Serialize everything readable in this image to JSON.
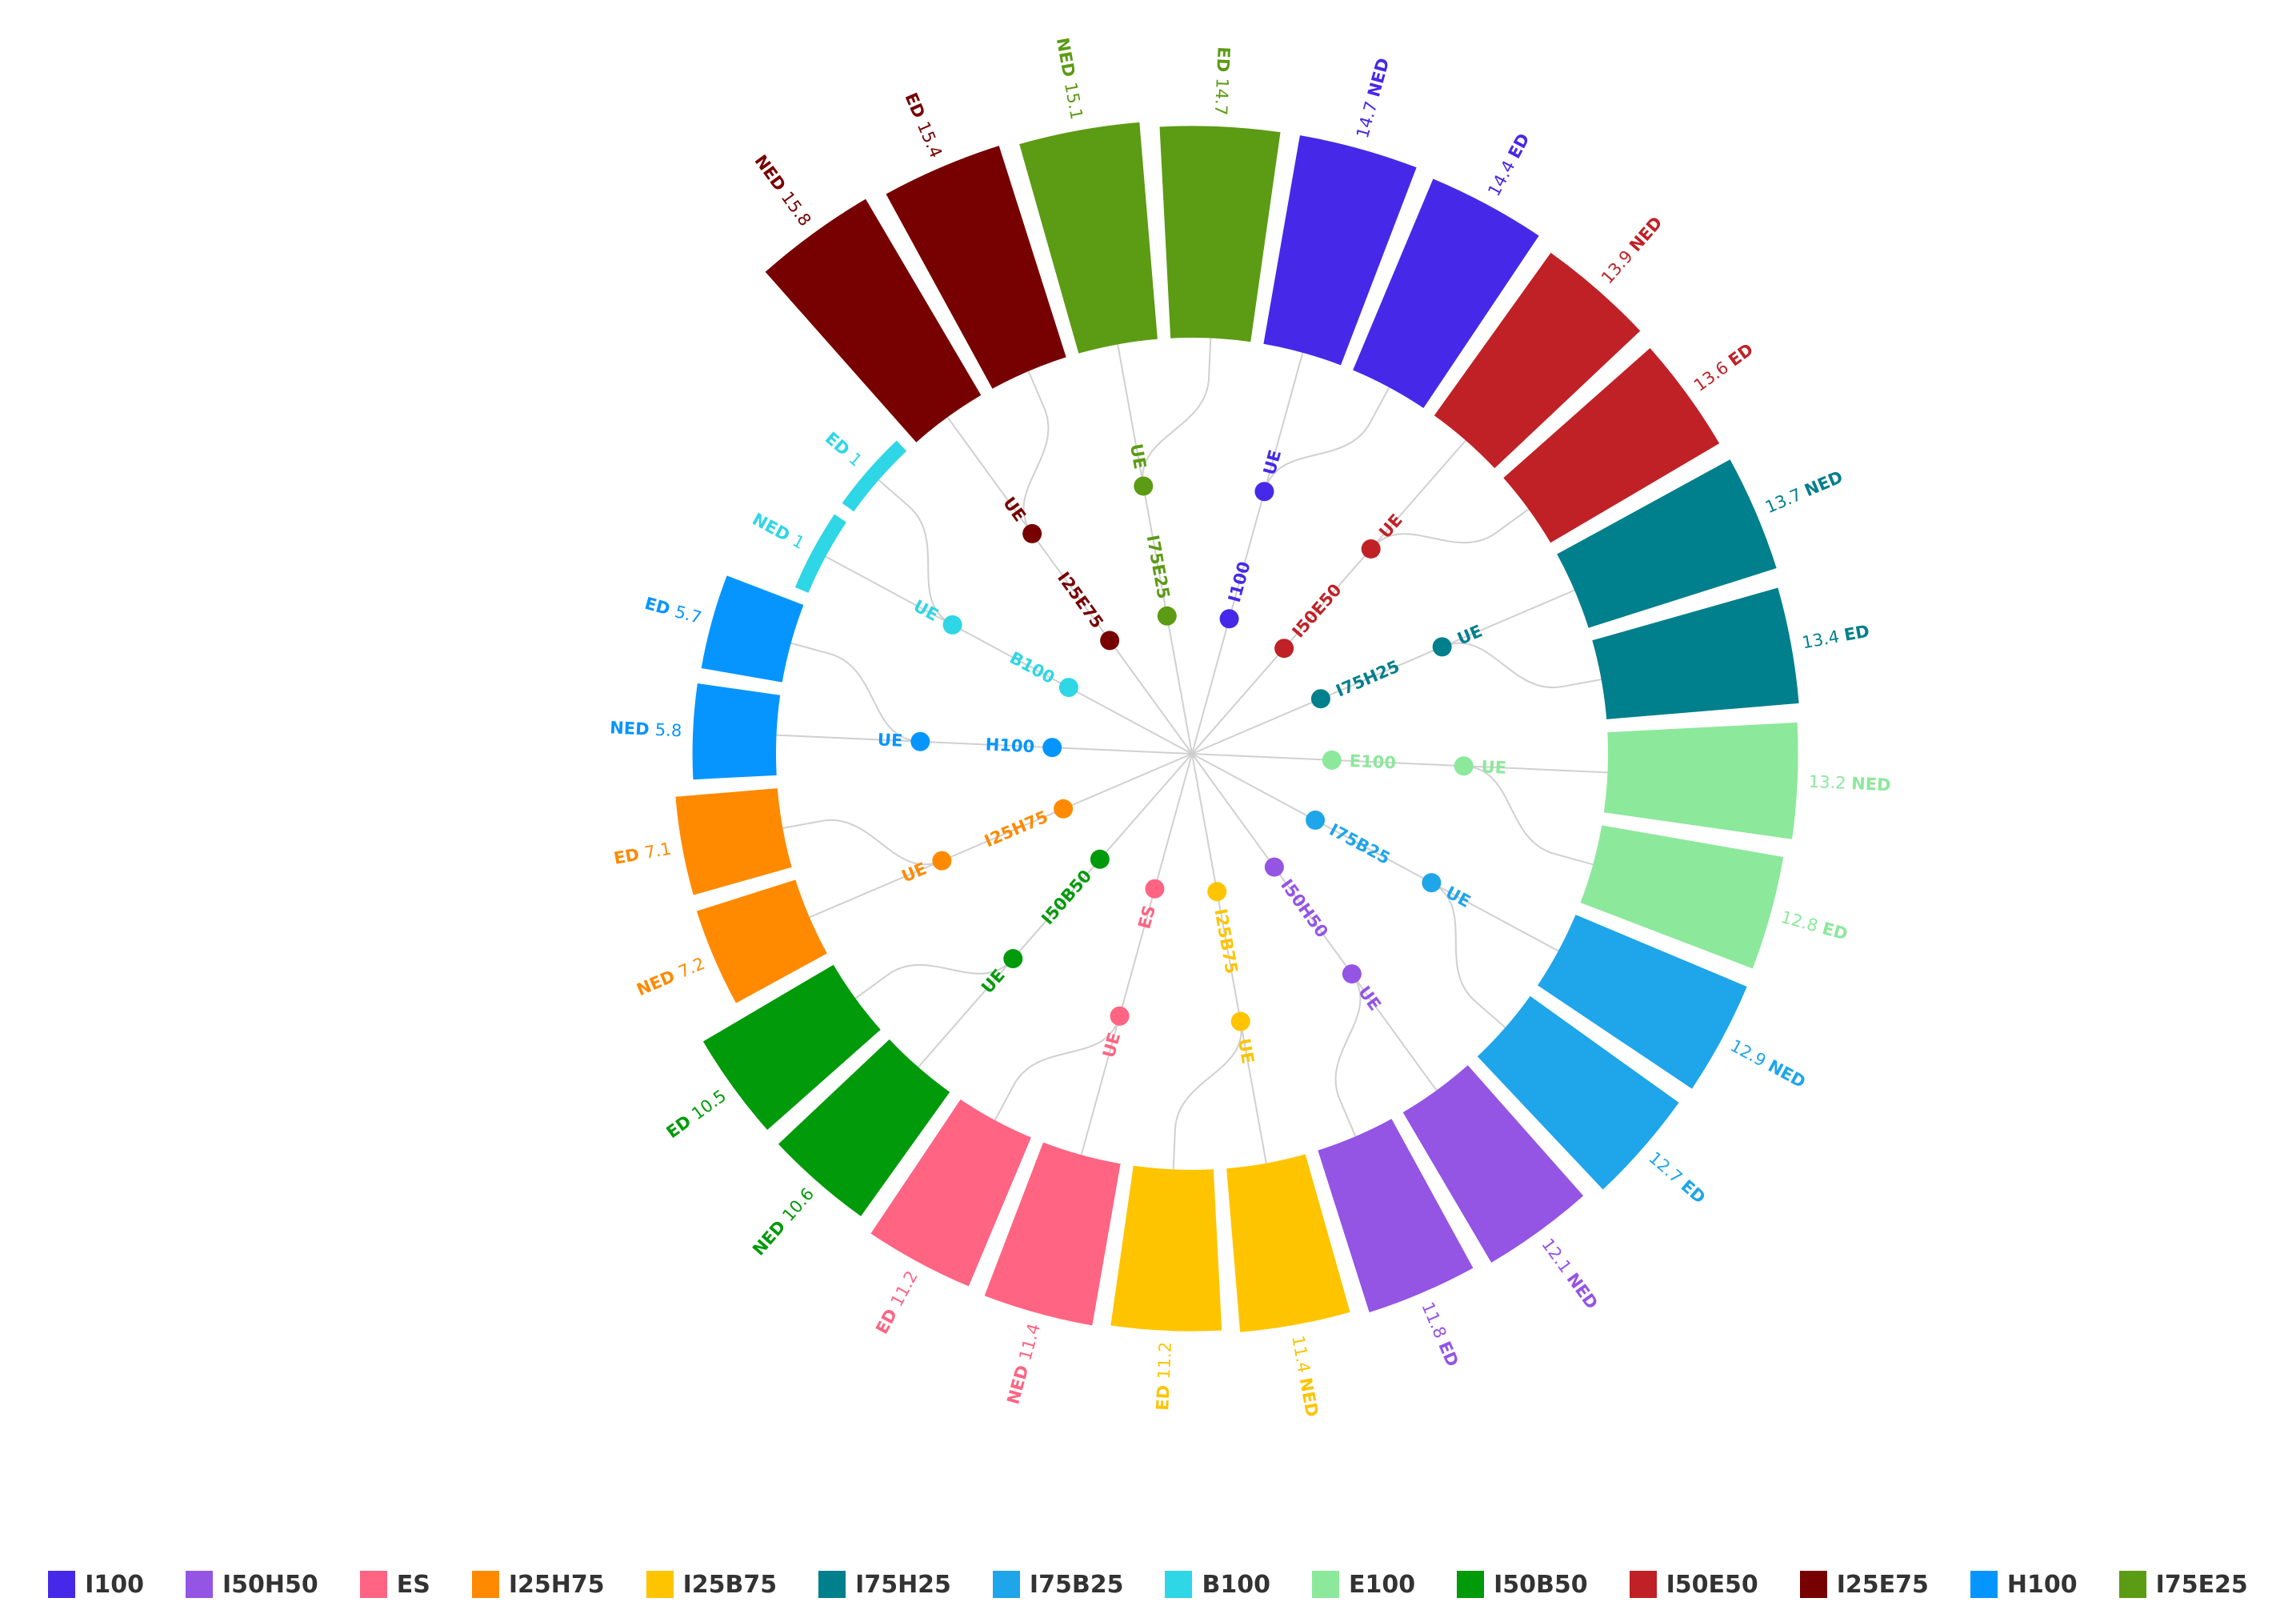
{
  "chart_data": {
    "type": "radial-bar-tree",
    "categories_order": [
      "I100",
      "I50E50",
      "I75H25",
      "E100",
      "I75B25",
      "I50H50",
      "I25B75",
      "ES",
      "I50B50",
      "I25H75",
      "H100",
      "B100",
      "I25E75",
      "I75E25"
    ],
    "series": [
      {
        "name": "I100",
        "color": "#4629e8",
        "branch": "UE",
        "groups": [
          {
            "label": "NED",
            "value": 14.7
          },
          {
            "label": "ED",
            "value": 14.4
          }
        ]
      },
      {
        "name": "I50E50",
        "color": "#c02126",
        "branch": "UE",
        "groups": [
          {
            "label": "NED",
            "value": 13.9
          },
          {
            "label": "ED",
            "value": 13.6
          }
        ]
      },
      {
        "name": "I75H25",
        "color": "#007f8c",
        "branch": "UE",
        "groups": [
          {
            "label": "NED",
            "value": 13.7
          },
          {
            "label": "ED",
            "value": 13.4
          }
        ]
      },
      {
        "name": "E100",
        "color": "#8ce89b",
        "branch": "UE",
        "groups": [
          {
            "label": "NED",
            "value": 13.2
          },
          {
            "label": "ED",
            "value": 12.8
          }
        ]
      },
      {
        "name": "I75B25",
        "color": "#1ea5ea",
        "branch": "UE",
        "groups": [
          {
            "label": "NED",
            "value": 12.9
          },
          {
            "label": "ED",
            "value": 12.7
          }
        ]
      },
      {
        "name": "I50H50",
        "color": "#9454e4",
        "branch": "UE",
        "groups": [
          {
            "label": "NED",
            "value": 12.1
          },
          {
            "label": "ED",
            "value": 11.8
          }
        ]
      },
      {
        "name": "I25B75",
        "color": "#ffc400",
        "branch": "UE",
        "groups": [
          {
            "label": "NED",
            "value": 11.4
          },
          {
            "label": "ED",
            "value": 11.2
          }
        ]
      },
      {
        "name": "ES",
        "color": "#ff6482",
        "branch": "UE",
        "groups": [
          {
            "label": "NED",
            "value": 11.4
          },
          {
            "label": "ED",
            "value": 11.2
          }
        ]
      },
      {
        "name": "I50B50",
        "color": "#009a0a",
        "branch": "UE",
        "groups": [
          {
            "label": "NED",
            "value": 10.6
          },
          {
            "label": "ED",
            "value": 10.5
          }
        ]
      },
      {
        "name": "I25H75",
        "color": "#ff8a00",
        "branch": "UE",
        "groups": [
          {
            "label": "NED",
            "value": 7.2
          },
          {
            "label": "ED",
            "value": 7.1
          }
        ]
      },
      {
        "name": "H100",
        "color": "#0695ff",
        "branch": "UE",
        "groups": [
          {
            "label": "NED",
            "value": 5.8
          },
          {
            "label": "ED",
            "value": 5.7
          }
        ]
      },
      {
        "name": "B100",
        "color": "#2ed6e6",
        "branch": "UE",
        "groups": [
          {
            "label": "NED",
            "value": 1
          },
          {
            "label": "ED",
            "value": 1
          }
        ]
      },
      {
        "name": "I25E75",
        "color": "#770000",
        "branch": "UE",
        "groups": [
          {
            "label": "NED",
            "value": 15.8
          },
          {
            "label": "ED",
            "value": 15.4
          }
        ]
      },
      {
        "name": "I75E25",
        "color": "#5c9b14",
        "branch": "UE",
        "groups": [
          {
            "label": "NED",
            "value": 15.1
          },
          {
            "label": "ED",
            "value": 14.7
          }
        ]
      }
    ],
    "legend": {
      "placement": "bottom",
      "items": [
        {
          "label": "I100",
          "color": "#4629e8"
        },
        {
          "label": "I50H50",
          "color": "#9454e4"
        },
        {
          "label": "ES",
          "color": "#ff6482"
        },
        {
          "label": "I25H75",
          "color": "#ff8a00"
        },
        {
          "label": "I25B75",
          "color": "#ffc400"
        },
        {
          "label": "I75H25",
          "color": "#007f8c"
        },
        {
          "label": "I75B25",
          "color": "#1ea5ea"
        },
        {
          "label": "B100",
          "color": "#2ed6e6"
        },
        {
          "label": "E100",
          "color": "#8ce89b"
        },
        {
          "label": "I50B50",
          "color": "#009a0a"
        },
        {
          "label": "I50E50",
          "color": "#c02126"
        },
        {
          "label": "I25E75",
          "color": "#770000"
        },
        {
          "label": "H100",
          "color": "#0695ff"
        },
        {
          "label": "I75E25",
          "color": "#5c9b14"
        }
      ]
    },
    "grid": false
  }
}
